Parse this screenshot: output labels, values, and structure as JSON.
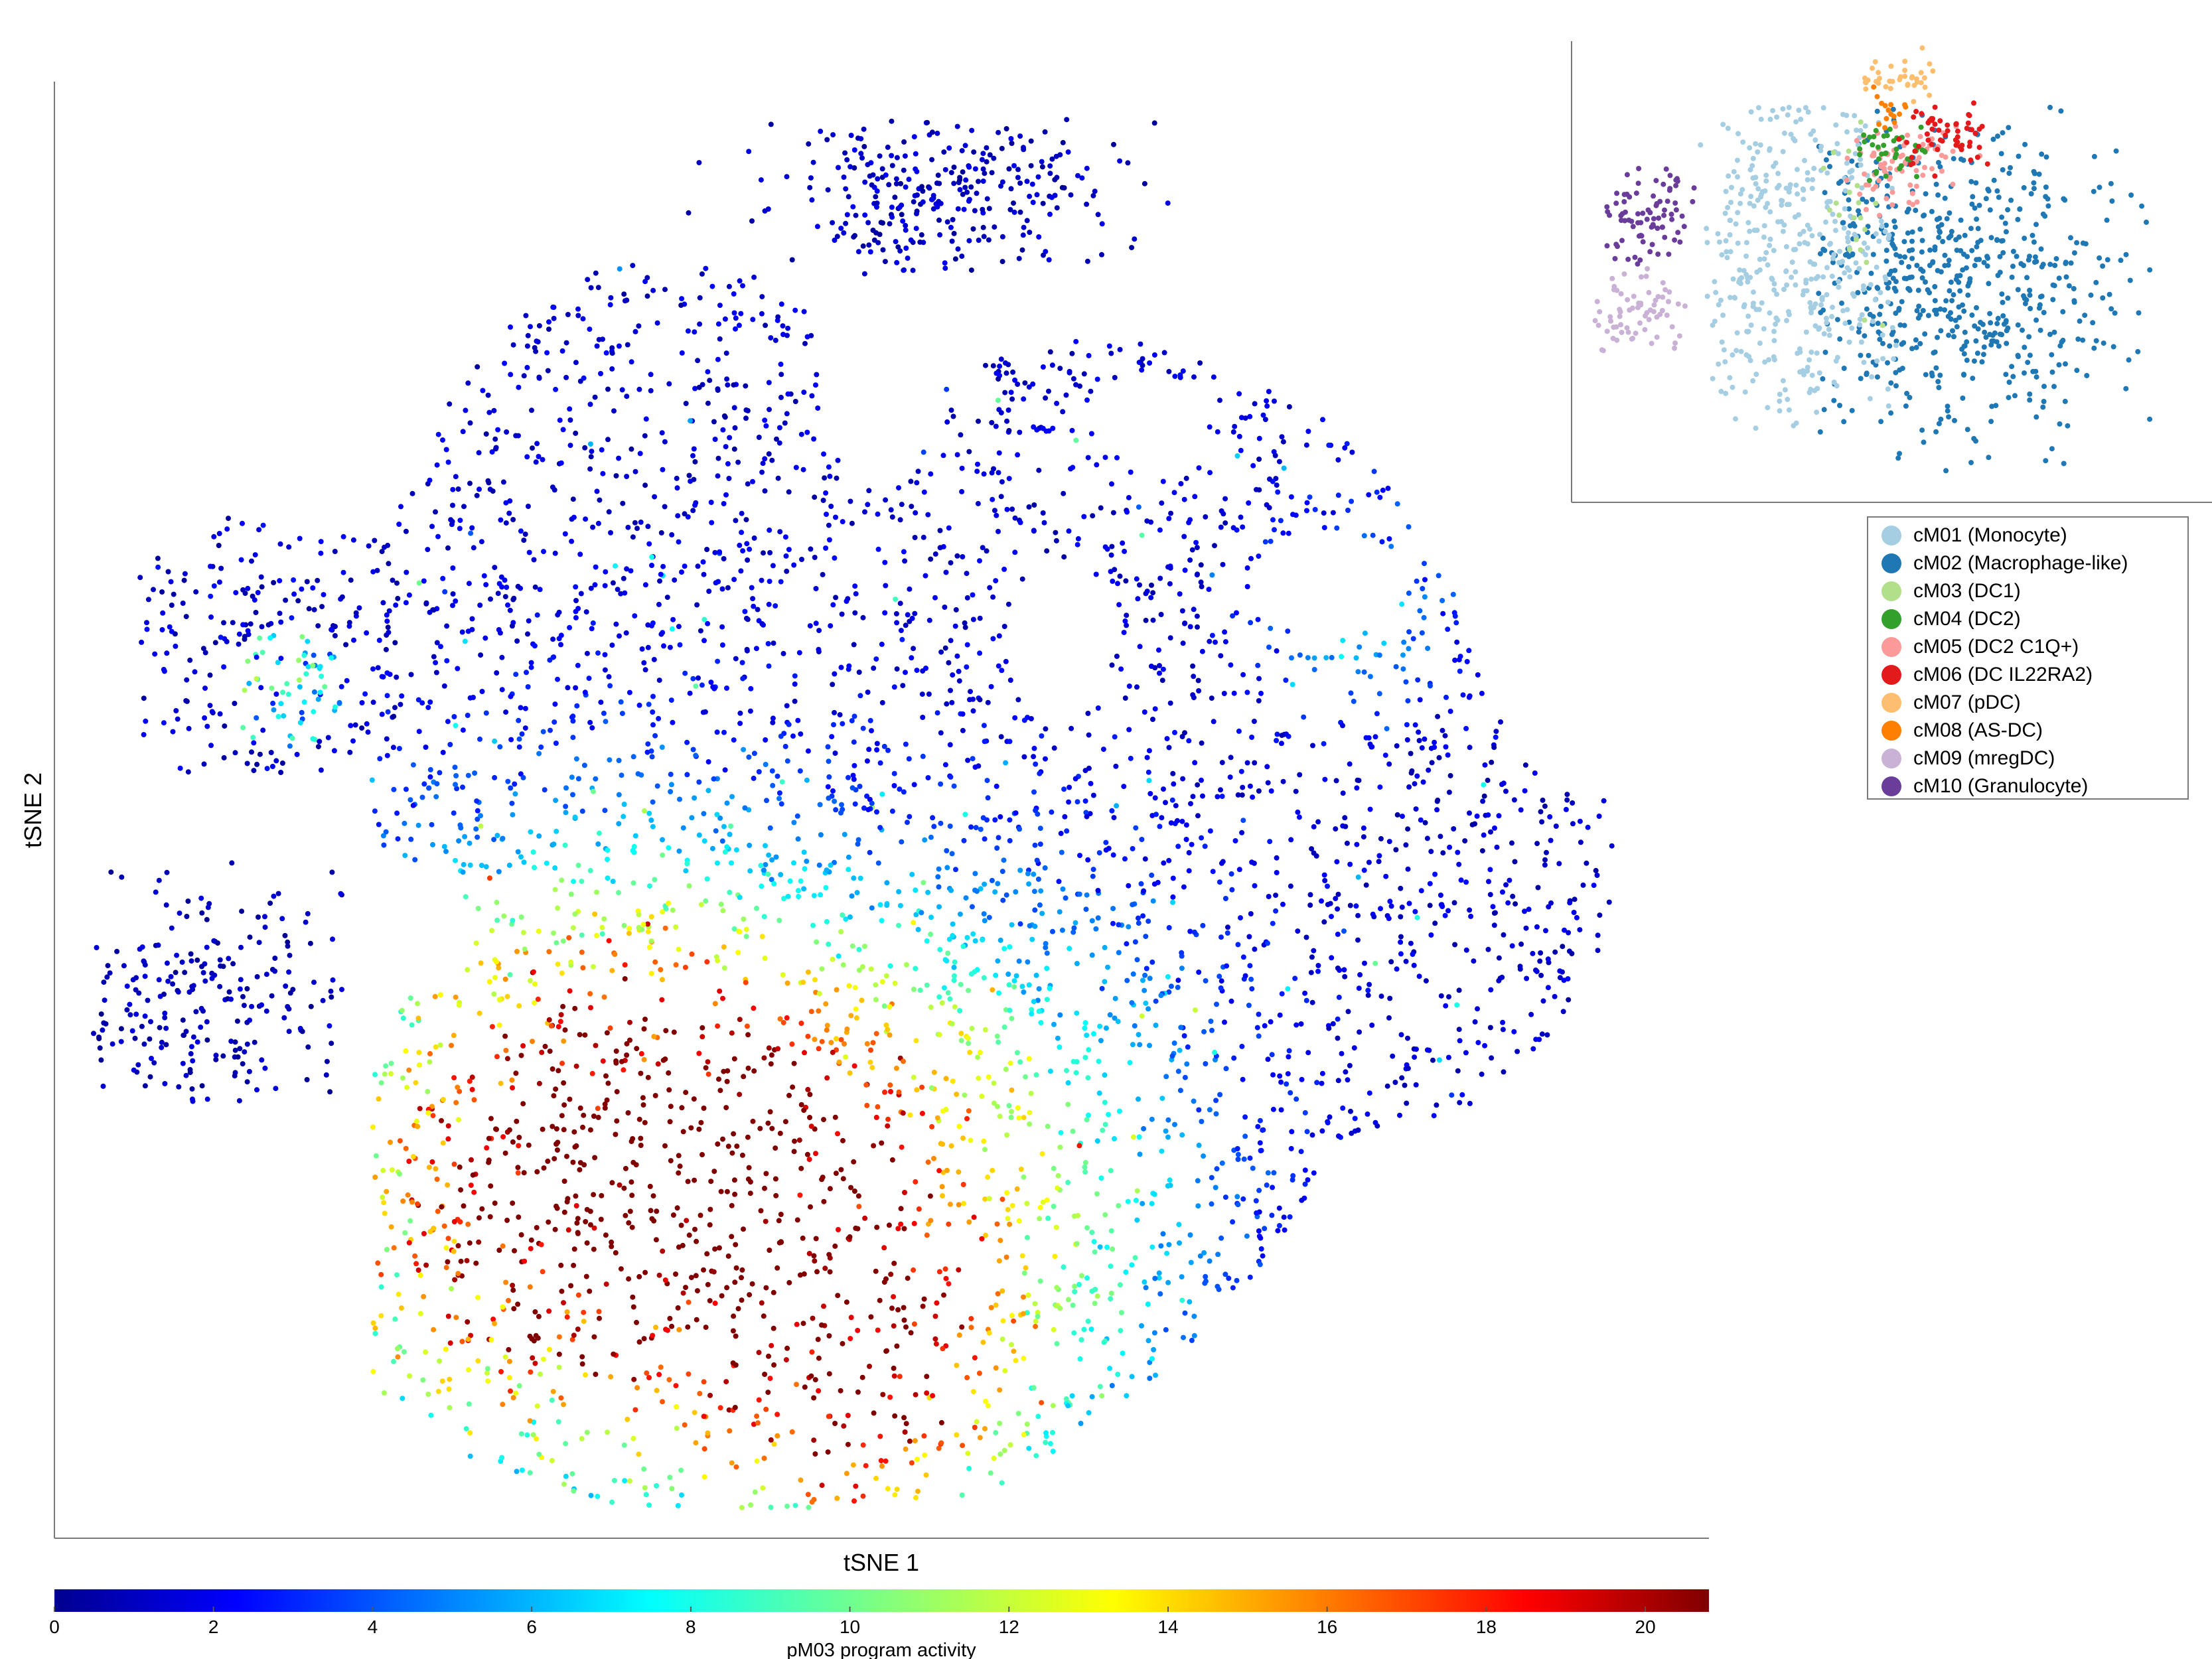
{
  "chart_data": [
    {
      "type": "scatter",
      "title": "",
      "xlabel": "tSNE 1",
      "ylabel": "tSNE 2",
      "x_ticks": [],
      "y_ticks": [],
      "color_by": "pM03 program activity",
      "colorbar": {
        "label": "pM03 program activity",
        "colormap": "jet",
        "range": [
          0,
          20.8
        ],
        "ticks": [
          "0",
          "2",
          "4",
          "6",
          "8",
          "10",
          "12",
          "14",
          "16",
          "18",
          "20"
        ]
      },
      "regions": [
        {
          "name": "main island",
          "cx": 0.0,
          "cy": 0.0,
          "activity": "mostly 0-4, high (12-21) in lower-left"
        },
        {
          "name": "top island",
          "cx": 0.1,
          "cy": 0.9,
          "activity": "0-2"
        },
        {
          "name": "left upper island",
          "cx": -0.9,
          "cy": 0.25,
          "activity": "0-8"
        },
        {
          "name": "left lower island",
          "cx": -1.0,
          "cy": -0.2,
          "activity": "0-2"
        }
      ]
    },
    {
      "type": "scatter",
      "title": "",
      "xlabel": "",
      "ylabel": "",
      "color_by": "cluster",
      "legend_position": "right, below inset",
      "series": [
        {
          "name": "cM01 (Monocyte)",
          "color": "#a6cee3"
        },
        {
          "name": "cM02 (Macrophage-like)",
          "color": "#1f78b4"
        },
        {
          "name": "cM03 (DC1)",
          "color": "#b2df8a"
        },
        {
          "name": "cM04 (DC2)",
          "color": "#33a02c"
        },
        {
          "name": "cM05 (DC2 C1Q+)",
          "color": "#fb9a99"
        },
        {
          "name": "cM06 (DC IL22RA2)",
          "color": "#e31a1c"
        },
        {
          "name": "cM07 (pDC)",
          "color": "#fdbf6f"
        },
        {
          "name": "cM08 (AS-DC)",
          "color": "#ff7f00"
        },
        {
          "name": "cM09 (mregDC)",
          "color": "#cab2d6"
        },
        {
          "name": "cM10 (Granulocyte)",
          "color": "#6a3d9a"
        }
      ]
    }
  ],
  "colors": {
    "axis": "#7a7a7a"
  }
}
